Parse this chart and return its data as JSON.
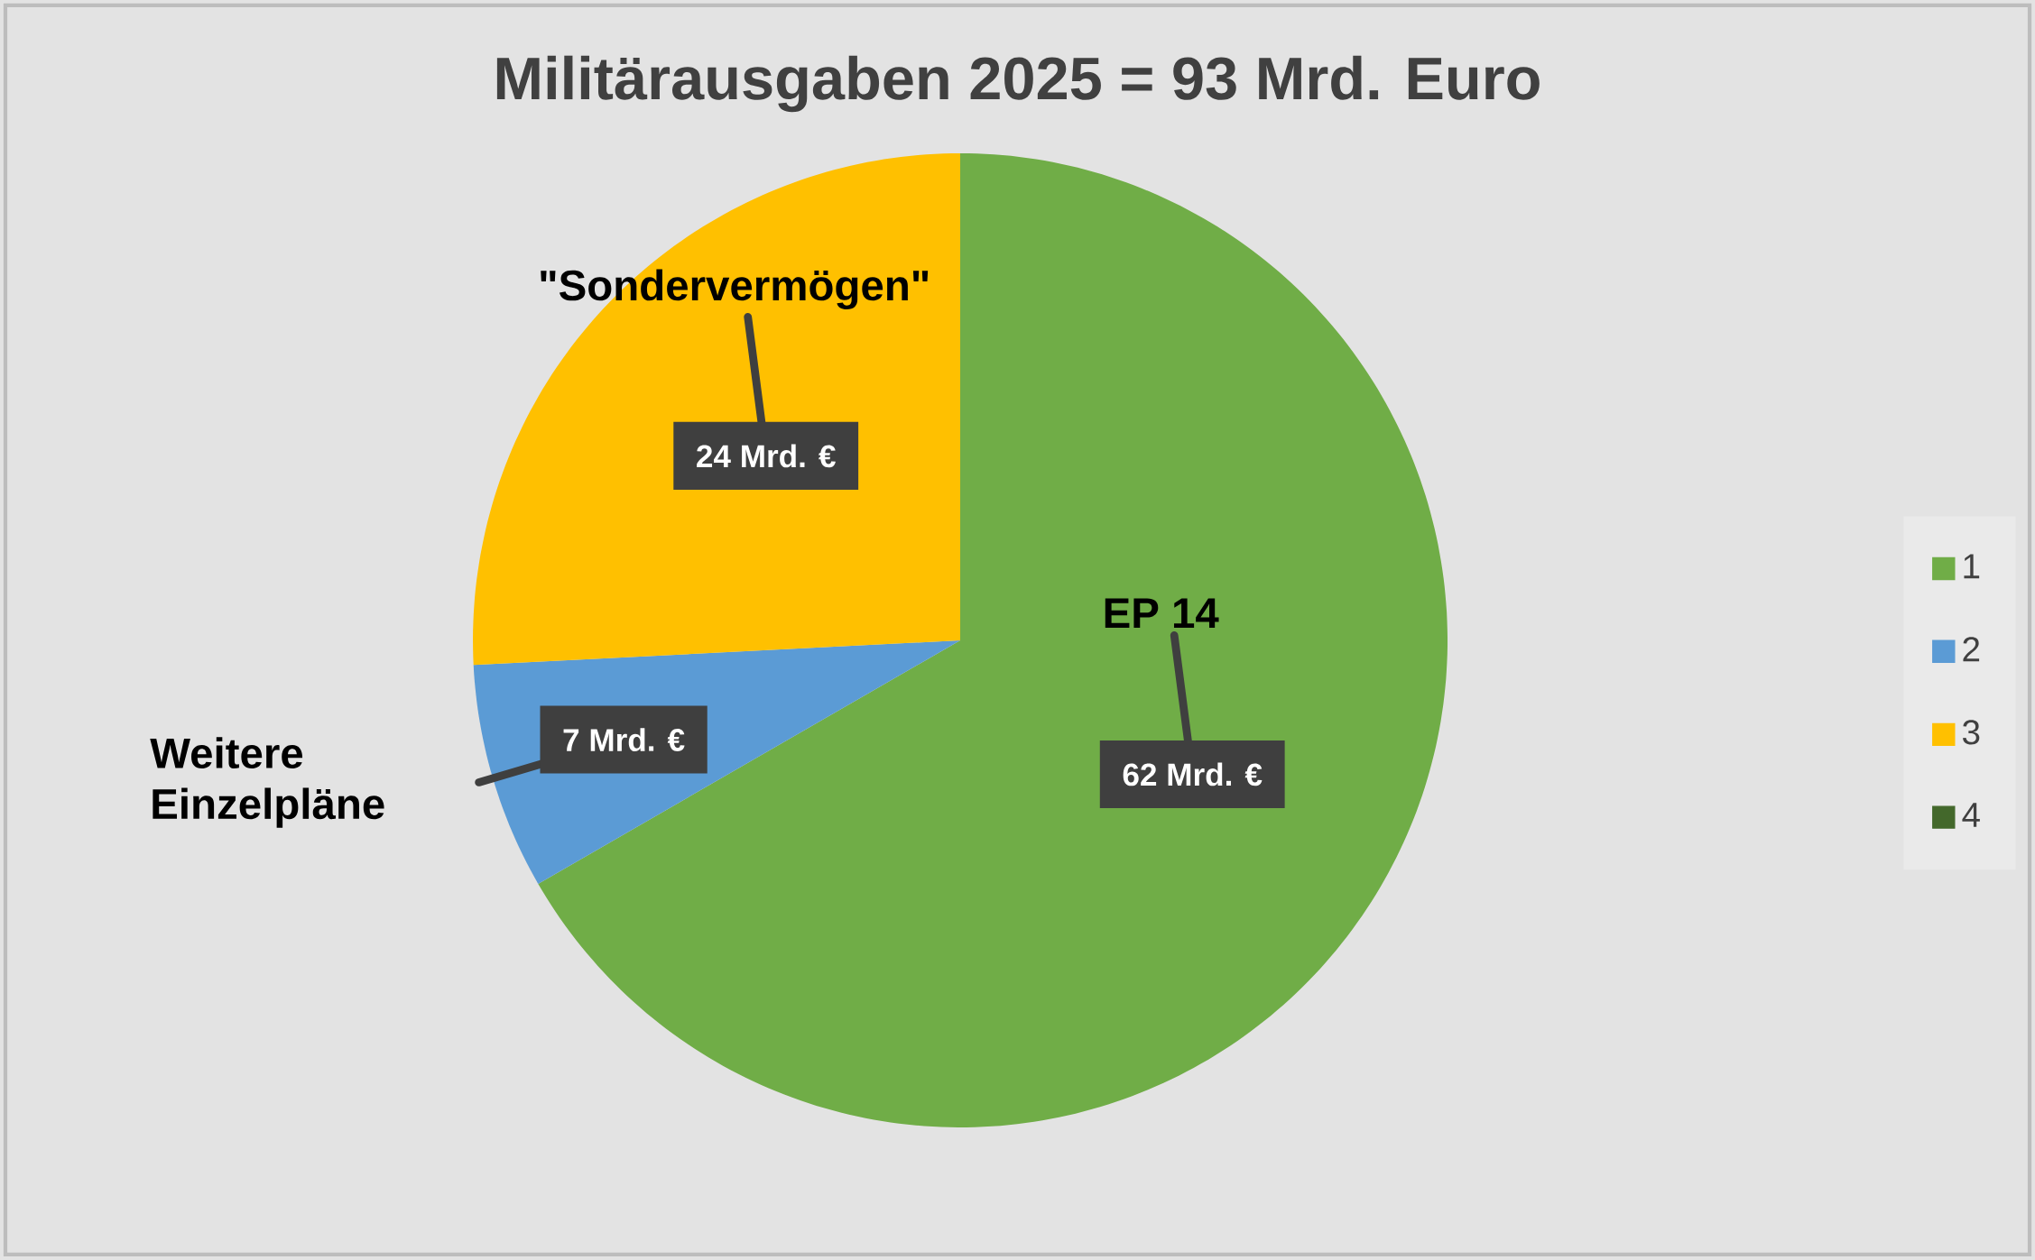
{
  "chart_data": {
    "type": "pie",
    "title": "Militärausgaben 2025 = 93 Mrd. Euro",
    "categories": [
      "1",
      "2",
      "3",
      "4"
    ],
    "values": [
      62,
      7,
      24,
      0
    ],
    "colors": [
      "#70ad47",
      "#5b9bd5",
      "#ffc000",
      "#43682b"
    ],
    "value_labels": [
      "62 Mrd. €",
      "7 Mrd. €",
      "24 Mrd. €",
      null
    ],
    "annotations": [
      "EP 14",
      "Weitere Einzelpläne",
      "\"Sondervermögen\""
    ],
    "legend": "right"
  }
}
